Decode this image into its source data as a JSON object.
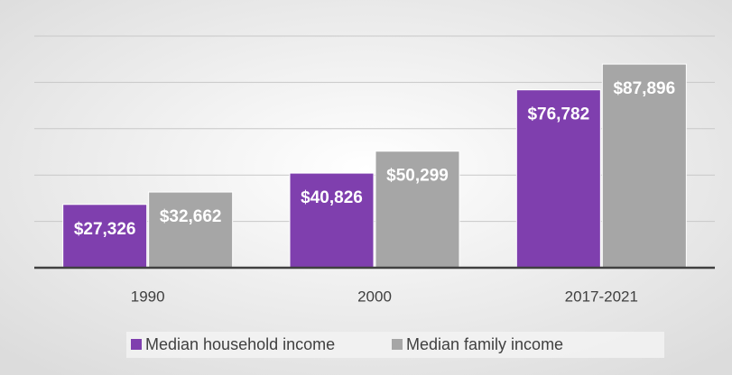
{
  "chart_data": {
    "type": "bar",
    "categories": [
      "1990",
      "2000",
      "2017-2021"
    ],
    "series": [
      {
        "name": "Median household income",
        "color": "#7f3fae",
        "values": [
          27326,
          40826,
          76782
        ],
        "value_labels": [
          "$27,326",
          "$40,826",
          "$76,782"
        ]
      },
      {
        "name": "Median family income",
        "color": "#a6a6a6",
        "values": [
          32662,
          50299,
          87896
        ],
        "value_labels": [
          "$32,662",
          "$50,299",
          "$87,896"
        ]
      }
    ],
    "ylim": [
      0,
      100000
    ],
    "yticks": [
      0,
      20000,
      40000,
      60000,
      80000,
      100000
    ],
    "grid": true,
    "legend": "bottom"
  }
}
